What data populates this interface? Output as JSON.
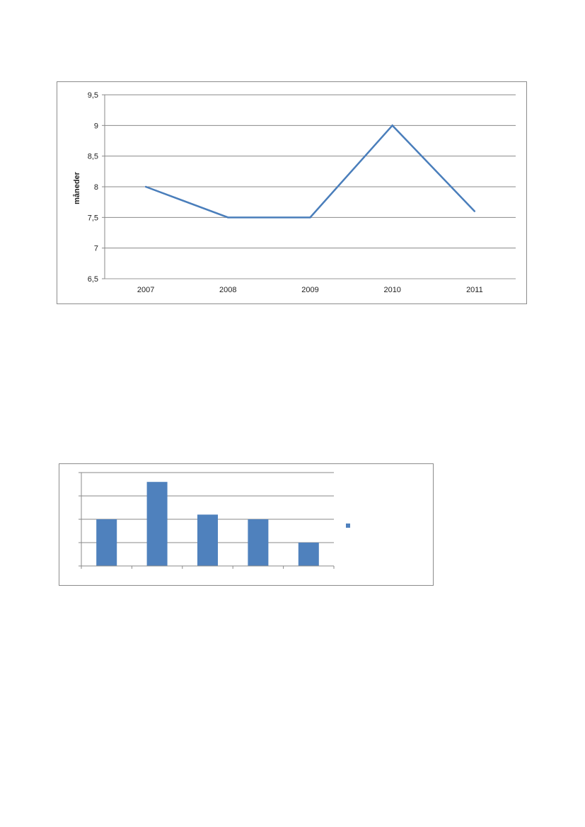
{
  "chart_data": [
    {
      "type": "line",
      "title": "",
      "xlabel": "",
      "ylabel": "måneder",
      "categories": [
        "2007",
        "2008",
        "2009",
        "2010",
        "2011"
      ],
      "series": [
        {
          "values": [
            8,
            7.5,
            7.5,
            9,
            7.6
          ]
        }
      ],
      "ylim": [
        6.5,
        9.5
      ],
      "yticks": [
        "9,5",
        "9",
        "8,5",
        "8",
        "7,5",
        "7",
        "6,5"
      ],
      "grid": true,
      "legend": "none",
      "line_color": "#4a7ebb"
    },
    {
      "type": "bar",
      "title": "",
      "xlabel": "",
      "ylabel": "",
      "categories": [
        "",
        "",
        "",
        "",
        ""
      ],
      "series": [
        {
          "values": [
            2,
            3.6,
            2.2,
            2,
            1
          ]
        }
      ],
      "ylim": [
        0,
        4
      ],
      "grid": true,
      "legend": "right",
      "bar_color": "#4f81bd"
    }
  ]
}
